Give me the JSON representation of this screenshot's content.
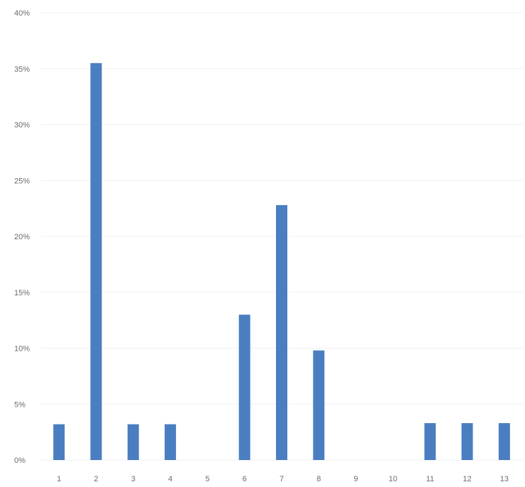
{
  "chart_data": {
    "type": "bar",
    "categories": [
      "1",
      "2",
      "3",
      "4",
      "5",
      "6",
      "7",
      "8",
      "9",
      "10",
      "11",
      "12",
      "13"
    ],
    "values": [
      3.2,
      35.5,
      3.2,
      3.2,
      0,
      13.0,
      22.8,
      9.8,
      0,
      0,
      3.3,
      3.3,
      3.3
    ],
    "y_tick_labels": [
      "0%",
      "5%",
      "10%",
      "15%",
      "20%",
      "25%",
      "30%",
      "35%",
      "40%"
    ],
    "y_ticks": [
      0,
      5,
      10,
      15,
      20,
      25,
      30,
      35,
      40
    ],
    "ylim": [
      0,
      40
    ],
    "y_unit": "%",
    "grid": true,
    "legend": "none",
    "bar_color": "#4a7ec0"
  }
}
